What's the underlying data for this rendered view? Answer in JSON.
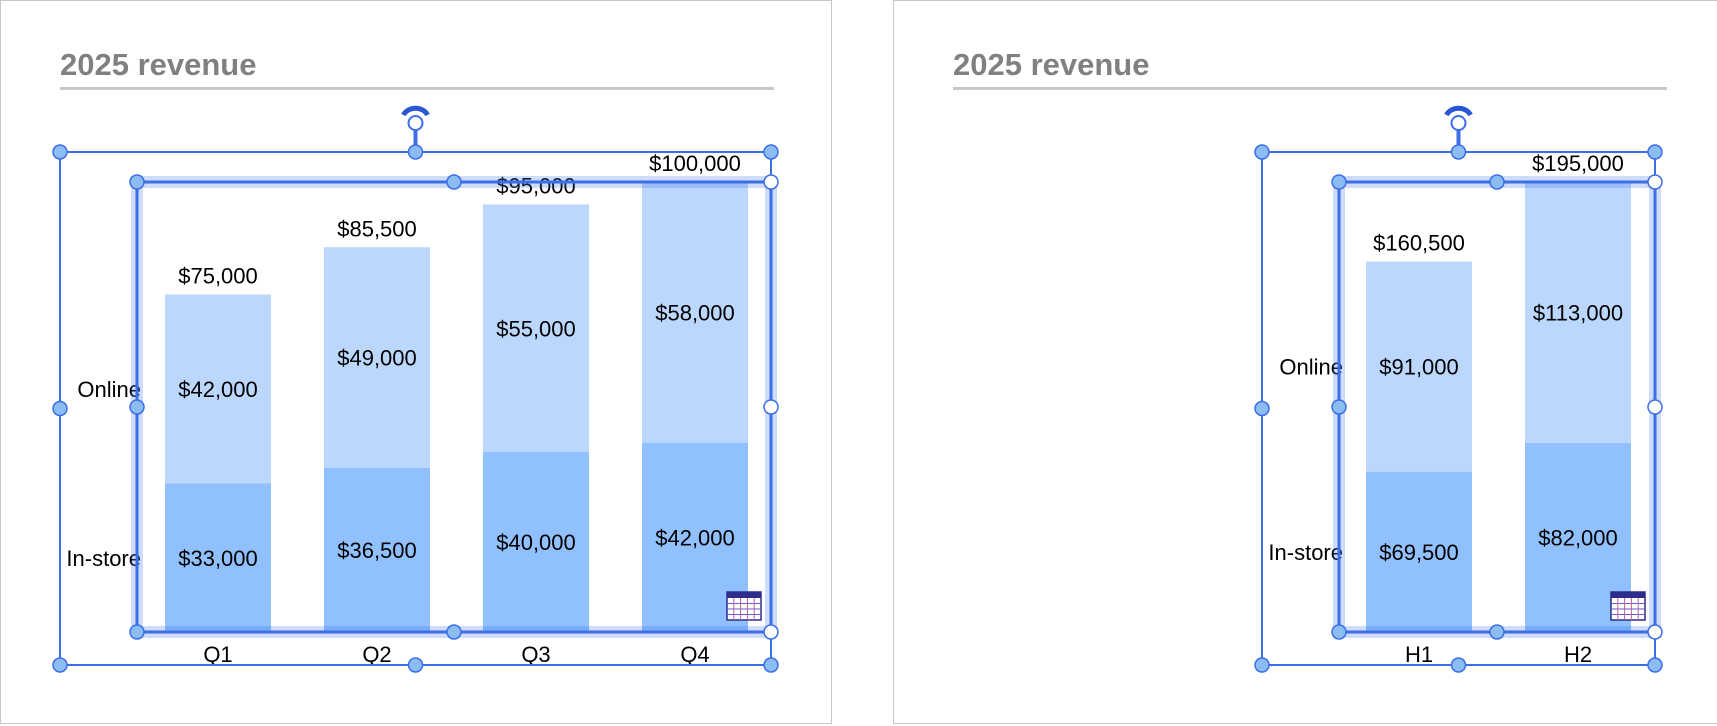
{
  "slides": [
    {
      "title": "2025 revenue",
      "chart_data": {
        "type": "bar",
        "stacked": true,
        "categories": [
          "Q1",
          "Q2",
          "Q3",
          "Q4"
        ],
        "series": [
          {
            "name": "In-store",
            "values": [
              33000,
              36500,
              40000,
              42000
            ],
            "value_labels": [
              "$33,000",
              "$36,500",
              "$40,000",
              "$42,000"
            ]
          },
          {
            "name": "Online",
            "values": [
              42000,
              49000,
              55000,
              58000
            ],
            "value_labels": [
              "$42,000",
              "$49,000",
              "$55,000",
              "$58,000"
            ]
          }
        ],
        "totals": [
          75000,
          85500,
          95000,
          100000
        ],
        "total_labels": [
          "$75,000",
          "$85,500",
          "$95,000",
          "$100,000"
        ],
        "ylim": [
          0,
          100000
        ],
        "grid": false,
        "legend": "left (series labels beside bars)",
        "colors": {
          "In-store": "#90c0fd",
          "Online": "#bcd7fd"
        }
      }
    },
    {
      "title": "2025 revenue",
      "chart_data": {
        "type": "bar",
        "stacked": true,
        "categories": [
          "H1",
          "H2"
        ],
        "series": [
          {
            "name": "In-store",
            "values": [
              69500,
              82000
            ],
            "value_labels": [
              "$69,500",
              "$82,000"
            ]
          },
          {
            "name": "Online",
            "values": [
              91000,
              113000
            ],
            "value_labels": [
              "$91,000",
              "$113,000"
            ]
          }
        ],
        "totals": [
          160500,
          195000
        ],
        "total_labels": [
          "$160,500",
          "$195,000"
        ],
        "ylim": [
          0,
          195000
        ],
        "grid": false,
        "legend": "left (series labels beside bars)",
        "colors": {
          "In-store": "#90c0fd",
          "Online": "#bcd7fd"
        }
      }
    }
  ],
  "icons": {
    "rotate": "rotate-handle-icon",
    "data_table": "chart-data-table-icon"
  },
  "colors": {
    "selection": "#3c6ee6",
    "handle_fill": "#8cbcf4",
    "title_gray": "#808080",
    "rule_gray": "#c8c8c8"
  }
}
